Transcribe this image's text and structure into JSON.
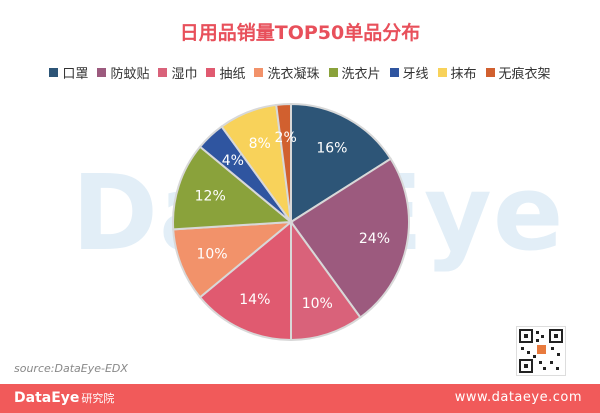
{
  "chart_data": {
    "type": "pie",
    "title": "日用品销量TOP50单品分布",
    "legend_position": "top",
    "categories": [
      "口罩",
      "防蚊贴",
      "湿巾",
      "抽纸",
      "洗衣凝珠",
      "洗衣片",
      "牙线",
      "抹布",
      "无痕衣架"
    ],
    "values": [
      16,
      24,
      10,
      14,
      10,
      12,
      4,
      8,
      2
    ],
    "value_labels": [
      "16%",
      "24%",
      "10%",
      "14%",
      "10%",
      "12%",
      "4%",
      "8%",
      "2%"
    ],
    "colors": [
      "#2d5577",
      "#9c5a7e",
      "#d9627a",
      "#e05a70",
      "#f2926a",
      "#8aa23b",
      "#2f55a0",
      "#f8d25a",
      "#d1602f"
    ]
  },
  "watermark": "DataEye",
  "source": "source:DataEye-EDX",
  "footer": {
    "brand": "DataEye",
    "brand_sub": "研究院",
    "url": "www.dataeye.com"
  }
}
